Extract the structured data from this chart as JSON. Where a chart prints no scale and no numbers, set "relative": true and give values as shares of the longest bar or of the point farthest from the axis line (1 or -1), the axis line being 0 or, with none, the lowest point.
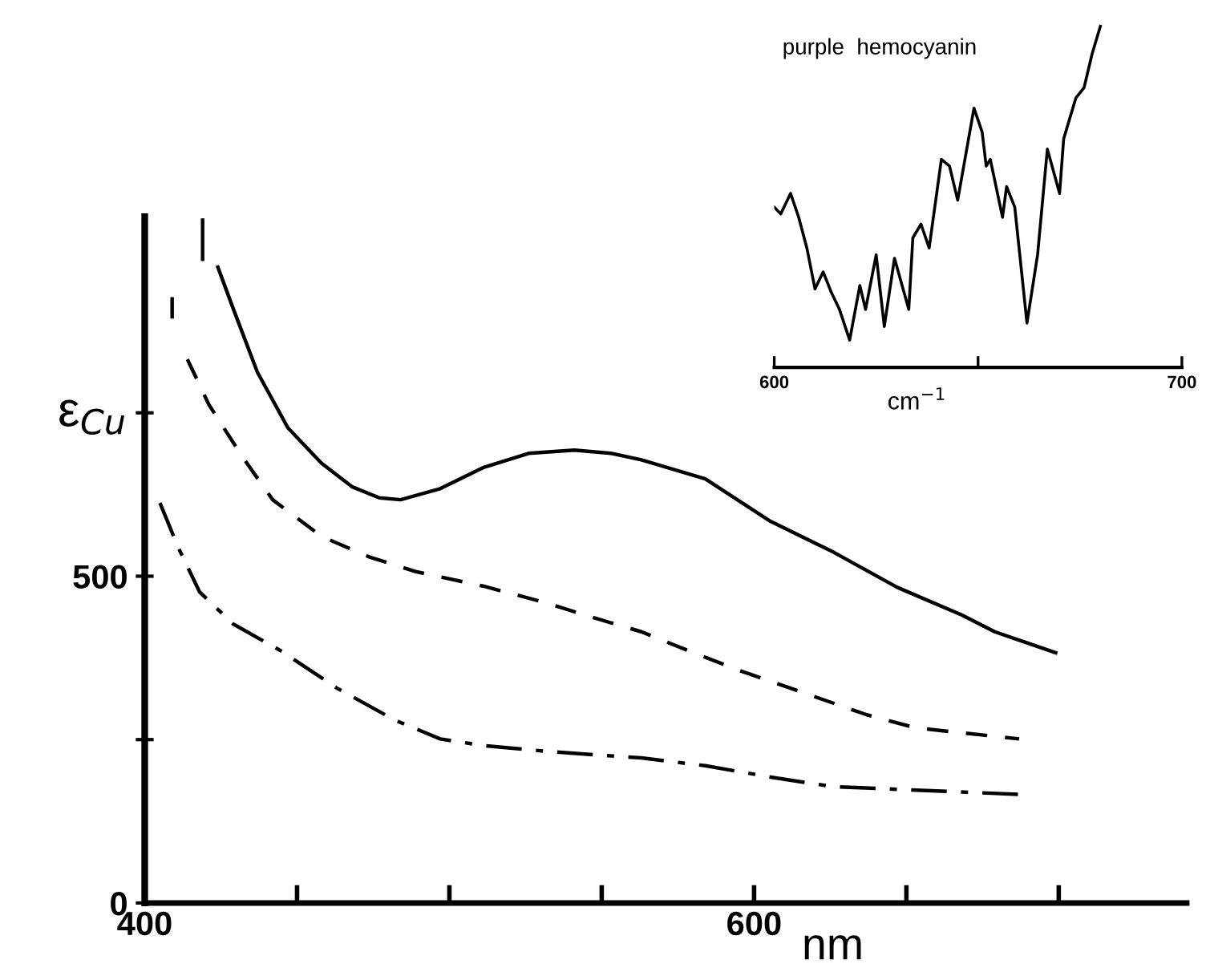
{
  "chart_data": [
    {
      "type": "line",
      "xlabel": "nm",
      "ylabel": "ε$_{Cu}$",
      "xlim": [
        400,
        742
      ],
      "ylim": [
        0,
        1050
      ],
      "xticks": [
        400,
        {
          "value": 450,
          "label": null
        },
        {
          "value": 500,
          "label": null
        },
        {
          "value": 550,
          "label": null
        },
        600,
        {
          "value": 650,
          "label": null
        },
        {
          "value": 700,
          "label": null
        }
      ],
      "yticks": [
        0,
        {
          "value": 250,
          "label": null
        },
        500,
        {
          "value": 750,
          "label": null
        }
      ],
      "series": [
        {
          "color": "#000000",
          "line_style": "solid",
          "x": [
            419,
            419,
            420,
            424,
            429,
            437,
            447,
            458,
            468,
            477,
            484,
            497,
            511,
            526,
            541,
            553,
            563,
            584,
            605,
            626,
            647,
            668,
            679,
            699
          ],
          "values": [
            1045,
            985,
            null,
            973,
            910,
            812,
            727,
            673,
            637,
            620,
            617,
            634,
            666,
            688,
            693,
            688,
            678,
            649,
            585,
            537,
            483,
            441,
            415,
            383
          ]
        },
        {
          "color": "#000000",
          "line_style": "dashed",
          "x": [
            409,
            409,
            410,
            414,
            421,
            432,
            442,
            458,
            474,
            489,
            511,
            532,
            547,
            563,
            579,
            595,
            616,
            637,
            653,
            687
          ],
          "values": [
            927,
            893,
            null,
            832,
            763,
            683,
            617,
            561,
            529,
            507,
            485,
            459,
            437,
            415,
            385,
            356,
            322,
            288,
            268,
            251
          ]
        },
        {
          "color": "#000000",
          "line_style": "dashdot",
          "x": [
            405,
            411,
            418,
            429,
            445,
            463,
            482,
            497,
            511,
            532,
            547,
            563,
            584,
            605,
            616,
            626,
            688
          ],
          "values": [
            612,
            544,
            476,
            427,
            385,
            329,
            280,
            251,
            241,
            232,
            227,
            222,
            210,
            193,
            185,
            178,
            166
          ]
        }
      ]
    },
    {
      "type": "line",
      "relative": true,
      "title": "purple  hemocyanin",
      "xlabel": "cm$^{−1}$",
      "xlim": [
        600,
        700
      ],
      "xticks": [
        600,
        {
          "value": 650,
          "label": null
        },
        700
      ],
      "series": [
        {
          "color": "#000000",
          "line_style": "solid",
          "x": [
            600,
            601.6,
            604,
            606,
            608,
            610,
            612,
            614,
            616,
            618.5,
            621,
            622.4,
            625,
            627,
            629.5,
            633,
            634,
            636,
            638,
            641,
            643,
            645,
            649,
            651,
            652,
            653,
            656,
            657,
            659,
            662,
            664.6,
            667,
            670,
            671,
            674,
            676,
            678,
            680
          ],
          "values": [
            0.47,
            0.45,
            0.51,
            0.44,
            0.35,
            0.23,
            0.28,
            0.22,
            0.17,
            0.08,
            0.24,
            0.17,
            0.33,
            0.12,
            0.32,
            0.17,
            0.38,
            0.42,
            0.35,
            0.61,
            0.59,
            0.49,
            0.76,
            0.69,
            0.59,
            0.61,
            0.44,
            0.53,
            0.47,
            0.13,
            0.33,
            0.64,
            0.51,
            0.67,
            0.79,
            0.82,
            0.92,
            1.0
          ]
        }
      ]
    }
  ]
}
